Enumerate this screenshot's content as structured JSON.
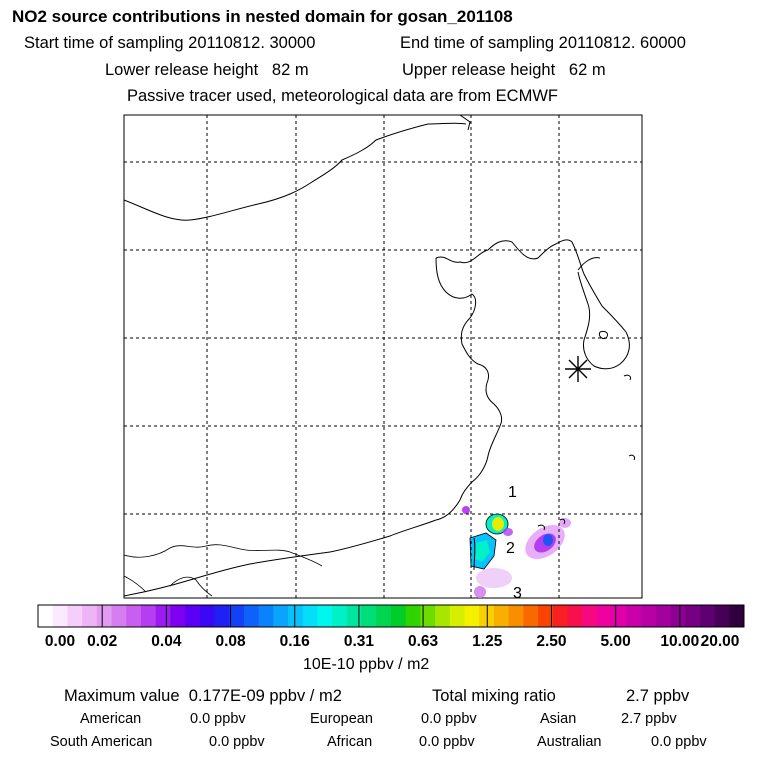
{
  "header": {
    "title": "NO2 source contributions in nested domain for gosan_201108",
    "start_label": "Start time of sampling 20110812. 30000",
    "end_label": "End time of sampling 20110812. 60000",
    "lower_label": "Lower release height   82 m",
    "upper_label": "Upper release height   62 m",
    "note": "Passive tracer used, meteorological data are from ECMWF"
  },
  "chart_data": {
    "type": "heatmap",
    "title": "NO2 source contributions in nested domain for gosan_201108",
    "grid": true,
    "receptor_marker": "asterisk",
    "annotations": [
      "1",
      "2",
      "3"
    ],
    "colorbar": {
      "tick_labels": [
        "0.00",
        "0.02",
        "0.04",
        "0.08",
        "0.16",
        "0.31",
        "0.63",
        "1.25",
        "2.50",
        "5.00",
        "10.00",
        "20.00"
      ],
      "units": "10E-10 ppbv / m2",
      "colors": [
        "#ffffff",
        "#fbe9fd",
        "#f5cff9",
        "#eeb4f6",
        "#e29af2",
        "#d67ef0",
        "#c85ff0",
        "#b43ef0",
        "#9b1cf0",
        "#7d00f2",
        "#5b00f5",
        "#3a08f5",
        "#2020f5",
        "#1440f7",
        "#0f62f9",
        "#0a82fb",
        "#0aa4fc",
        "#07c2fc",
        "#05def9",
        "#00f7ee",
        "#00f0c8",
        "#00e6a0",
        "#00de78",
        "#00d550",
        "#00cd28",
        "#2ed300",
        "#6edc00",
        "#a8e600",
        "#d6ee00",
        "#f5f000",
        "#f8d000",
        "#f8b000",
        "#f88e00",
        "#f86a00",
        "#f84400",
        "#f82020",
        "#f8104c",
        "#f80880",
        "#f000a0",
        "#e000a8",
        "#cc00aa",
        "#b800a6",
        "#a3009e",
        "#8c0092",
        "#750083",
        "#5e006f",
        "#460058",
        "#30003e"
      ]
    },
    "stats": {
      "max_label": "Maximum value  0.177E-09 ppbv / m2",
      "total_label": "Total mixing ratio",
      "total_value": "2.7 ppbv",
      "regions": [
        {
          "name": "American",
          "value": "0.0 ppbv"
        },
        {
          "name": "European",
          "value": "0.0 ppbv"
        },
        {
          "name": "Asian",
          "value": "2.7 ppbv"
        },
        {
          "name": "South American",
          "value": "0.0 ppbv"
        },
        {
          "name": "African",
          "value": "0.0 ppbv"
        },
        {
          "name": "Australian",
          "value": "0.0 ppbv"
        }
      ]
    }
  }
}
